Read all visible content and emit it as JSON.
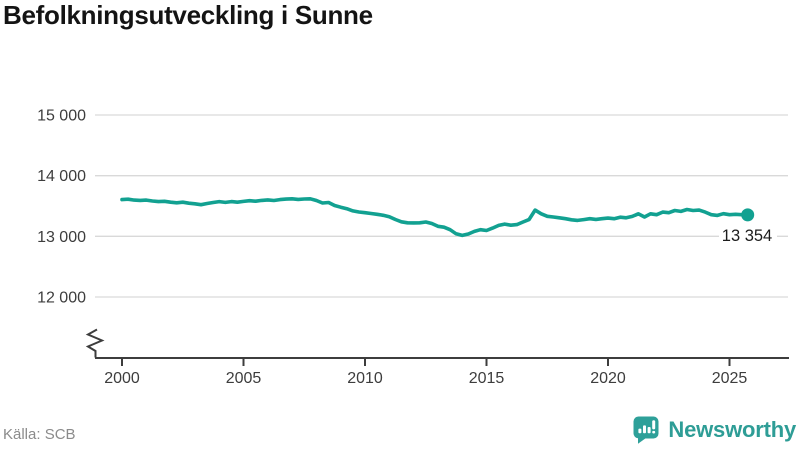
{
  "title": "Befolkningsutveckling i Sunne",
  "footer": {
    "source": "Källa: SCB",
    "brand_name": "Newsworthy"
  },
  "colors": {
    "line": "#12a191",
    "brand": "#2ea099",
    "grid": "#d9d9d9",
    "axis": "#3d3d3d",
    "title_text": "#141414",
    "source_text": "#8b8b8b",
    "end_label_text": "#1c1c1c"
  },
  "chart_data": {
    "type": "line",
    "title": "Befolkningsutveckling i Sunne",
    "xlabel": "",
    "ylabel": "",
    "grid": "horizontal",
    "axis_break": true,
    "xlim": [
      2000,
      2025.75
    ],
    "ylim": [
      12000,
      15000
    ],
    "x_ticks": [
      2000,
      2005,
      2010,
      2015,
      2020,
      2025
    ],
    "y_ticks": [
      15000,
      14000,
      13000,
      12000
    ],
    "y_tick_labels": [
      "15 000",
      "14 000",
      "13 000",
      "12 000"
    ],
    "end_label": "13 354",
    "end_value": 13354,
    "series": [
      {
        "color": "#12a191",
        "points": [
          [
            2000.0,
            13605
          ],
          [
            2000.25,
            13612
          ],
          [
            2000.5,
            13598
          ],
          [
            2000.75,
            13592
          ],
          [
            2001.0,
            13597
          ],
          [
            2001.25,
            13582
          ],
          [
            2001.5,
            13572
          ],
          [
            2001.75,
            13578
          ],
          [
            2002.0,
            13563
          ],
          [
            2002.25,
            13553
          ],
          [
            2002.5,
            13562
          ],
          [
            2002.75,
            13546
          ],
          [
            2003.0,
            13536
          ],
          [
            2003.25,
            13522
          ],
          [
            2003.5,
            13542
          ],
          [
            2003.75,
            13558
          ],
          [
            2004.0,
            13572
          ],
          [
            2004.25,
            13560
          ],
          [
            2004.5,
            13572
          ],
          [
            2004.75,
            13563
          ],
          [
            2005.0,
            13576
          ],
          [
            2005.25,
            13588
          ],
          [
            2005.5,
            13579
          ],
          [
            2005.75,
            13592
          ],
          [
            2006.0,
            13601
          ],
          [
            2006.25,
            13591
          ],
          [
            2006.5,
            13606
          ],
          [
            2006.75,
            13613
          ],
          [
            2007.0,
            13618
          ],
          [
            2007.25,
            13609
          ],
          [
            2007.5,
            13616
          ],
          [
            2007.75,
            13619
          ],
          [
            2008.0,
            13591
          ],
          [
            2008.25,
            13549
          ],
          [
            2008.5,
            13557
          ],
          [
            2008.75,
            13509
          ],
          [
            2009.0,
            13481
          ],
          [
            2009.25,
            13456
          ],
          [
            2009.5,
            13419
          ],
          [
            2009.75,
            13401
          ],
          [
            2010.0,
            13389
          ],
          [
            2010.25,
            13376
          ],
          [
            2010.5,
            13363
          ],
          [
            2010.75,
            13346
          ],
          [
            2011.0,
            13323
          ],
          [
            2011.25,
            13277
          ],
          [
            2011.5,
            13239
          ],
          [
            2011.75,
            13223
          ],
          [
            2012.0,
            13221
          ],
          [
            2012.25,
            13223
          ],
          [
            2012.5,
            13236
          ],
          [
            2012.75,
            13211
          ],
          [
            2013.0,
            13166
          ],
          [
            2013.25,
            13151
          ],
          [
            2013.5,
            13109
          ],
          [
            2013.75,
            13041
          ],
          [
            2014.0,
            13016
          ],
          [
            2014.25,
            13039
          ],
          [
            2014.5,
            13081
          ],
          [
            2014.75,
            13109
          ],
          [
            2015.0,
            13096
          ],
          [
            2015.25,
            13136
          ],
          [
            2015.5,
            13181
          ],
          [
            2015.75,
            13201
          ],
          [
            2016.0,
            13183
          ],
          [
            2016.25,
            13193
          ],
          [
            2016.5,
            13236
          ],
          [
            2016.75,
            13276
          ],
          [
            2017.0,
            13432
          ],
          [
            2017.25,
            13371
          ],
          [
            2017.5,
            13331
          ],
          [
            2017.75,
            13319
          ],
          [
            2018.0,
            13306
          ],
          [
            2018.25,
            13291
          ],
          [
            2018.5,
            13273
          ],
          [
            2018.75,
            13263
          ],
          [
            2019.0,
            13276
          ],
          [
            2019.25,
            13291
          ],
          [
            2019.5,
            13279
          ],
          [
            2019.75,
            13291
          ],
          [
            2020.0,
            13301
          ],
          [
            2020.25,
            13291
          ],
          [
            2020.5,
            13316
          ],
          [
            2020.75,
            13306
          ],
          [
            2021.0,
            13329
          ],
          [
            2021.25,
            13371
          ],
          [
            2021.5,
            13319
          ],
          [
            2021.75,
            13371
          ],
          [
            2022.0,
            13357
          ],
          [
            2022.25,
            13399
          ],
          [
            2022.5,
            13389
          ],
          [
            2022.75,
            13426
          ],
          [
            2023.0,
            13411
          ],
          [
            2023.25,
            13443
          ],
          [
            2023.5,
            13426
          ],
          [
            2023.75,
            13433
          ],
          [
            2024.0,
            13399
          ],
          [
            2024.25,
            13357
          ],
          [
            2024.5,
            13345
          ],
          [
            2024.75,
            13373
          ],
          [
            2025.0,
            13357
          ],
          [
            2025.25,
            13363
          ],
          [
            2025.5,
            13357
          ],
          [
            2025.75,
            13354
          ]
        ]
      }
    ]
  }
}
